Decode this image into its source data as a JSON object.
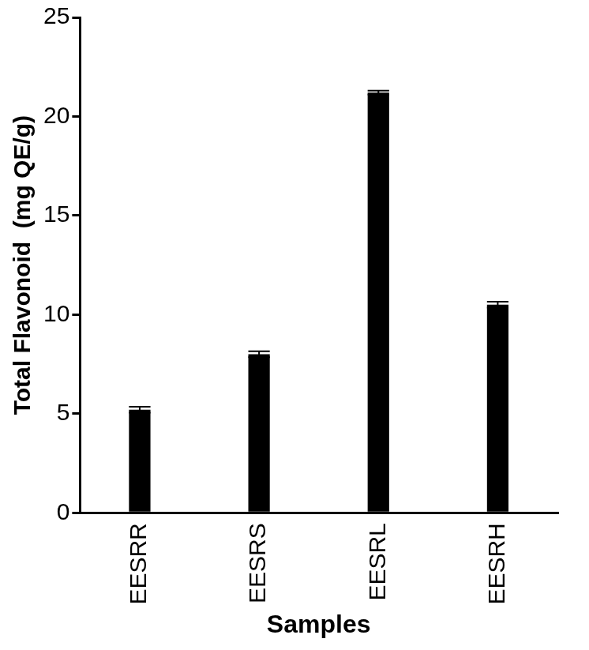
{
  "chart_data": {
    "type": "bar",
    "x_label": "Samples",
    "y_label": "Total Flavonoid  (mg QE/g)",
    "categories": [
      "EESRR",
      "EESRS",
      "EESRL",
      "EESRH"
    ],
    "values": [
      5.2,
      8.0,
      21.2,
      10.5
    ],
    "errors": [
      0.15,
      0.15,
      0.1,
      0.15
    ],
    "color": "#000000",
    "ylim": [
      0,
      25
    ],
    "yticks": [
      0,
      5,
      10,
      15,
      20,
      25
    ],
    "grid": false
  }
}
